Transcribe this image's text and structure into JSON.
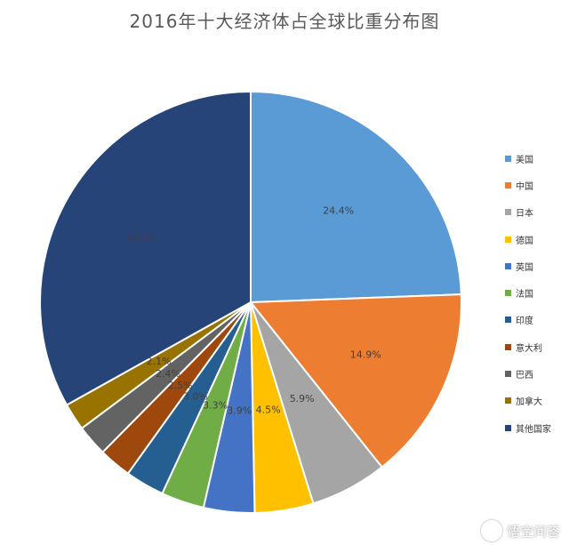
{
  "chart_data": {
    "type": "pie",
    "title": "2016年十大经济体占全球比重分布图",
    "legend_position": "right",
    "slices": [
      {
        "label": "美国",
        "value": 24.4,
        "value_label": "24.4%",
        "color": "#5B9BD5"
      },
      {
        "label": "中国",
        "value": 14.9,
        "value_label": "14.9%",
        "color": "#ED7D31"
      },
      {
        "label": "日本",
        "value": 5.9,
        "value_label": "5.9%",
        "color": "#A5A5A5"
      },
      {
        "label": "德国",
        "value": 4.5,
        "value_label": "4.5%",
        "color": "#FFC000"
      },
      {
        "label": "英国",
        "value": 3.9,
        "value_label": "3.9%",
        "color": "#4472C4"
      },
      {
        "label": "法国",
        "value": 3.3,
        "value_label": "3.3%",
        "color": "#70AD47"
      },
      {
        "label": "印度",
        "value": 3.0,
        "value_label": "3.0%",
        "color": "#255E91"
      },
      {
        "label": "意大利",
        "value": 2.5,
        "value_label": "2.5%",
        "color": "#9E480E"
      },
      {
        "label": "巴西",
        "value": 2.4,
        "value_label": "2.4%",
        "color": "#636363"
      },
      {
        "label": "加拿大",
        "value": 2.1,
        "value_label": "2.1%",
        "color": "#997300"
      },
      {
        "label": "其他国家",
        "value": 33.1,
        "value_label": "33.1%",
        "color": "#264478"
      }
    ]
  },
  "watermark": {
    "text": "悟空问答"
  }
}
